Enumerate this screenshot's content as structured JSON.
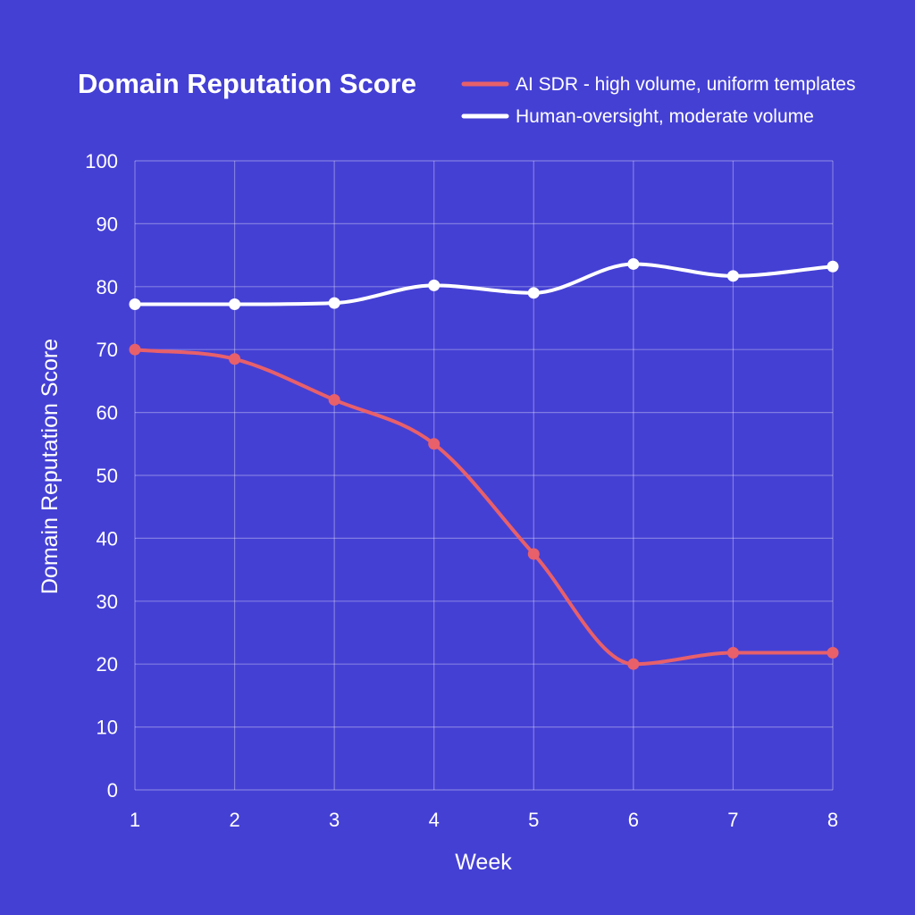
{
  "chart_data": {
    "type": "line",
    "title": "Domain Reputation Score",
    "xlabel": "Week",
    "ylabel": "Domain Reputation Score",
    "x": [
      1,
      2,
      3,
      4,
      5,
      6,
      7,
      8
    ],
    "xlim": [
      1,
      8
    ],
    "ylim": [
      0,
      100
    ],
    "y_ticks": [
      0,
      10,
      20,
      30,
      40,
      50,
      60,
      70,
      80,
      90,
      100
    ],
    "grid": true,
    "legend_position": "top-right",
    "series": [
      {
        "name": "AI SDR - high volume, uniform templates",
        "color": "#e8606a",
        "values": [
          70,
          68.5,
          62,
          55,
          37.5,
          20,
          21.8,
          21.8
        ]
      },
      {
        "name": "Human-oversight, moderate volume",
        "color": "#ffffff",
        "values": [
          77.2,
          77.2,
          77.4,
          80.2,
          79,
          83.6,
          81.7,
          83.2
        ]
      }
    ]
  }
}
